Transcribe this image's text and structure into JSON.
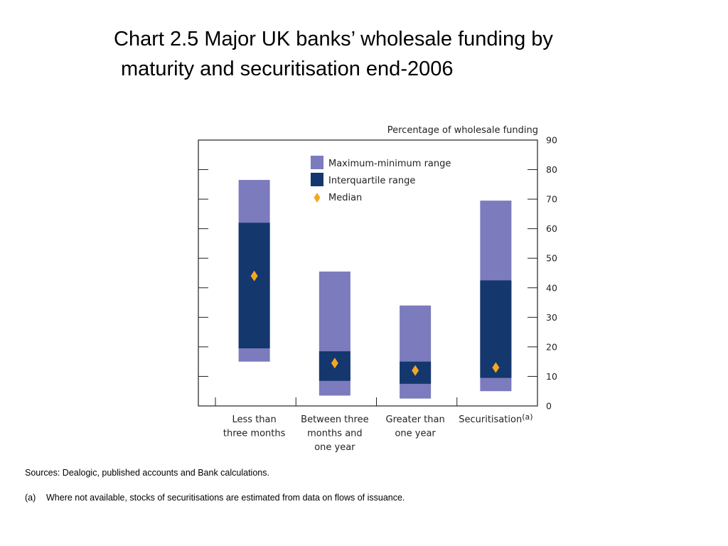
{
  "title_line1": "Chart 2.5  Major UK banks’ wholesale funding by",
  "title_line2": "maturity and securitisation end-2006",
  "sources": "Sources:  Dealogic, published accounts and Bank calculations.",
  "footnote_marker": "(a)",
  "footnote": "Where not available, stocks of securitisations are estimated from data on flows of issuance.",
  "colors": {
    "range": "#7b7bbd",
    "interquartile": "#14376d",
    "median": "#f5a623",
    "axis": "#231f20"
  },
  "chart_data": {
    "type": "bar",
    "subtype": "floating range (min-max, interquartile, median)",
    "ylabel": "Percentage of wholesale funding",
    "ylim": [
      0,
      90
    ],
    "yticks": [
      "0",
      "10",
      "20",
      "30",
      "40",
      "50",
      "60",
      "70",
      "80",
      "90"
    ],
    "categories": [
      [
        "Less than",
        "three months"
      ],
      [
        "Between three",
        "months and",
        "one year"
      ],
      [
        "Greater than",
        "one year"
      ],
      [
        "Securitisation"
      ]
    ],
    "category_superscripts": [
      "",
      "",
      "",
      "(a)"
    ],
    "legend": [
      "Maximum-minimum range",
      "Interquartile range",
      "Median"
    ],
    "legend_position": "top",
    "series": [
      {
        "name": "Maximum-minimum range",
        "values": [
          [
            15,
            76.5
          ],
          [
            3.5,
            45.5
          ],
          [
            2.5,
            34
          ],
          [
            5,
            69.5
          ]
        ]
      },
      {
        "name": "Interquartile range",
        "values": [
          [
            19.5,
            62
          ],
          [
            8.5,
            18.5
          ],
          [
            7.5,
            15
          ],
          [
            9.5,
            42.5
          ]
        ]
      },
      {
        "name": "Median",
        "values": [
          44,
          14.5,
          12,
          13
        ]
      }
    ]
  }
}
